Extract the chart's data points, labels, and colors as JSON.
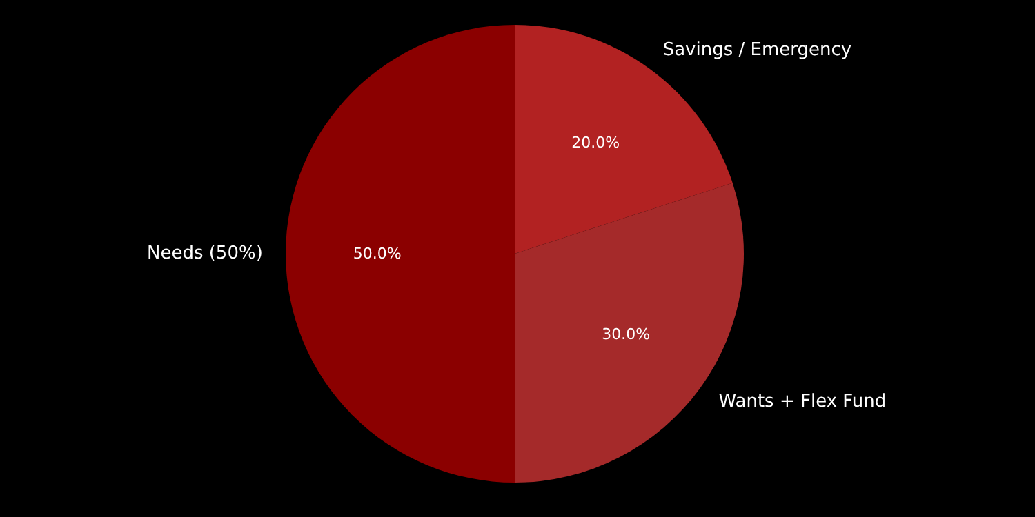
{
  "chart_data": {
    "type": "pie",
    "categories": [
      "Savings / Emergency",
      "Wants + Flex Fund",
      "Needs (50%)"
    ],
    "values": [
      20,
      30,
      50
    ],
    "colors": [
      "#b22222",
      "#a52a2a",
      "#8b0000"
    ],
    "value_labels": [
      "20.0%",
      "30.0%",
      "50.0%"
    ]
  }
}
